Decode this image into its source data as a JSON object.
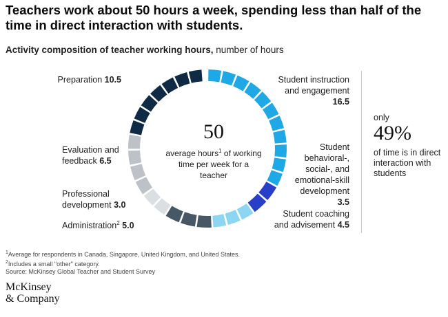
{
  "title": "Teachers work about 50 hours a week, spending less than half of the time in direct interaction with students.",
  "subtitle_bold": "Activity composition of teacher working hours,",
  "subtitle_rest": " number of hours",
  "center": {
    "total": "50",
    "caption_a": "average hours",
    "caption_sup": "1",
    "caption_b": " of working time per week for a teacher"
  },
  "side_note": {
    "only": "only",
    "percent": "49%",
    "caption": "of time is in direct interaction with students"
  },
  "labels": {
    "preparation": {
      "name": "Preparation",
      "value": "10.5"
    },
    "instruction": {
      "name": "Student instruction and engagement",
      "value": "16.5"
    },
    "behavioral": {
      "name": "Student behavioral-, social-, and emotional-skill development",
      "value": "3.5"
    },
    "coaching": {
      "name": "Student coaching and advisement",
      "value": "4.5"
    },
    "administration": {
      "name": "Administration",
      "sup": "2",
      "value": "5.0"
    },
    "professional": {
      "name": "Professional development",
      "value": "3.0"
    },
    "evaluation": {
      "name": "Evaluation and feedback",
      "value": "6.5"
    }
  },
  "footnotes": {
    "note1": "Average for respondents in Canada, Singapore, United Kingdom, and United States.",
    "note1_sup": "1",
    "note2": "Includes a small \"other\" category.",
    "note2_sup": "2",
    "source": "Source: McKinsey Global Teacher and Student Survey"
  },
  "logo": {
    "line1": "McKinsey",
    "line2": "& Company"
  },
  "chart_data": {
    "type": "pie",
    "style": "segmented donut, clockwise from top",
    "title": "Activity composition of teacher working hours, number of hours",
    "total": 50,
    "slices": [
      {
        "name": "Student instruction and engagement",
        "value": 16.5,
        "color": "#1ea8e6"
      },
      {
        "name": "Student behavioral-, social-, and emotional-skill development",
        "value": 3.5,
        "color": "#2840c8"
      },
      {
        "name": "Student coaching and advisement",
        "value": 4.5,
        "color": "#8dd6f2"
      },
      {
        "name": "Administration",
        "value": 5.0,
        "color": "#465866"
      },
      {
        "name": "Professional development",
        "value": 3.0,
        "color": "#dcdfe2"
      },
      {
        "name": "Evaluation and feedback",
        "value": 6.5,
        "color": "#bcc2c7"
      },
      {
        "name": "Preparation",
        "value": 10.5,
        "color": "#0f2a44"
      }
    ]
  }
}
